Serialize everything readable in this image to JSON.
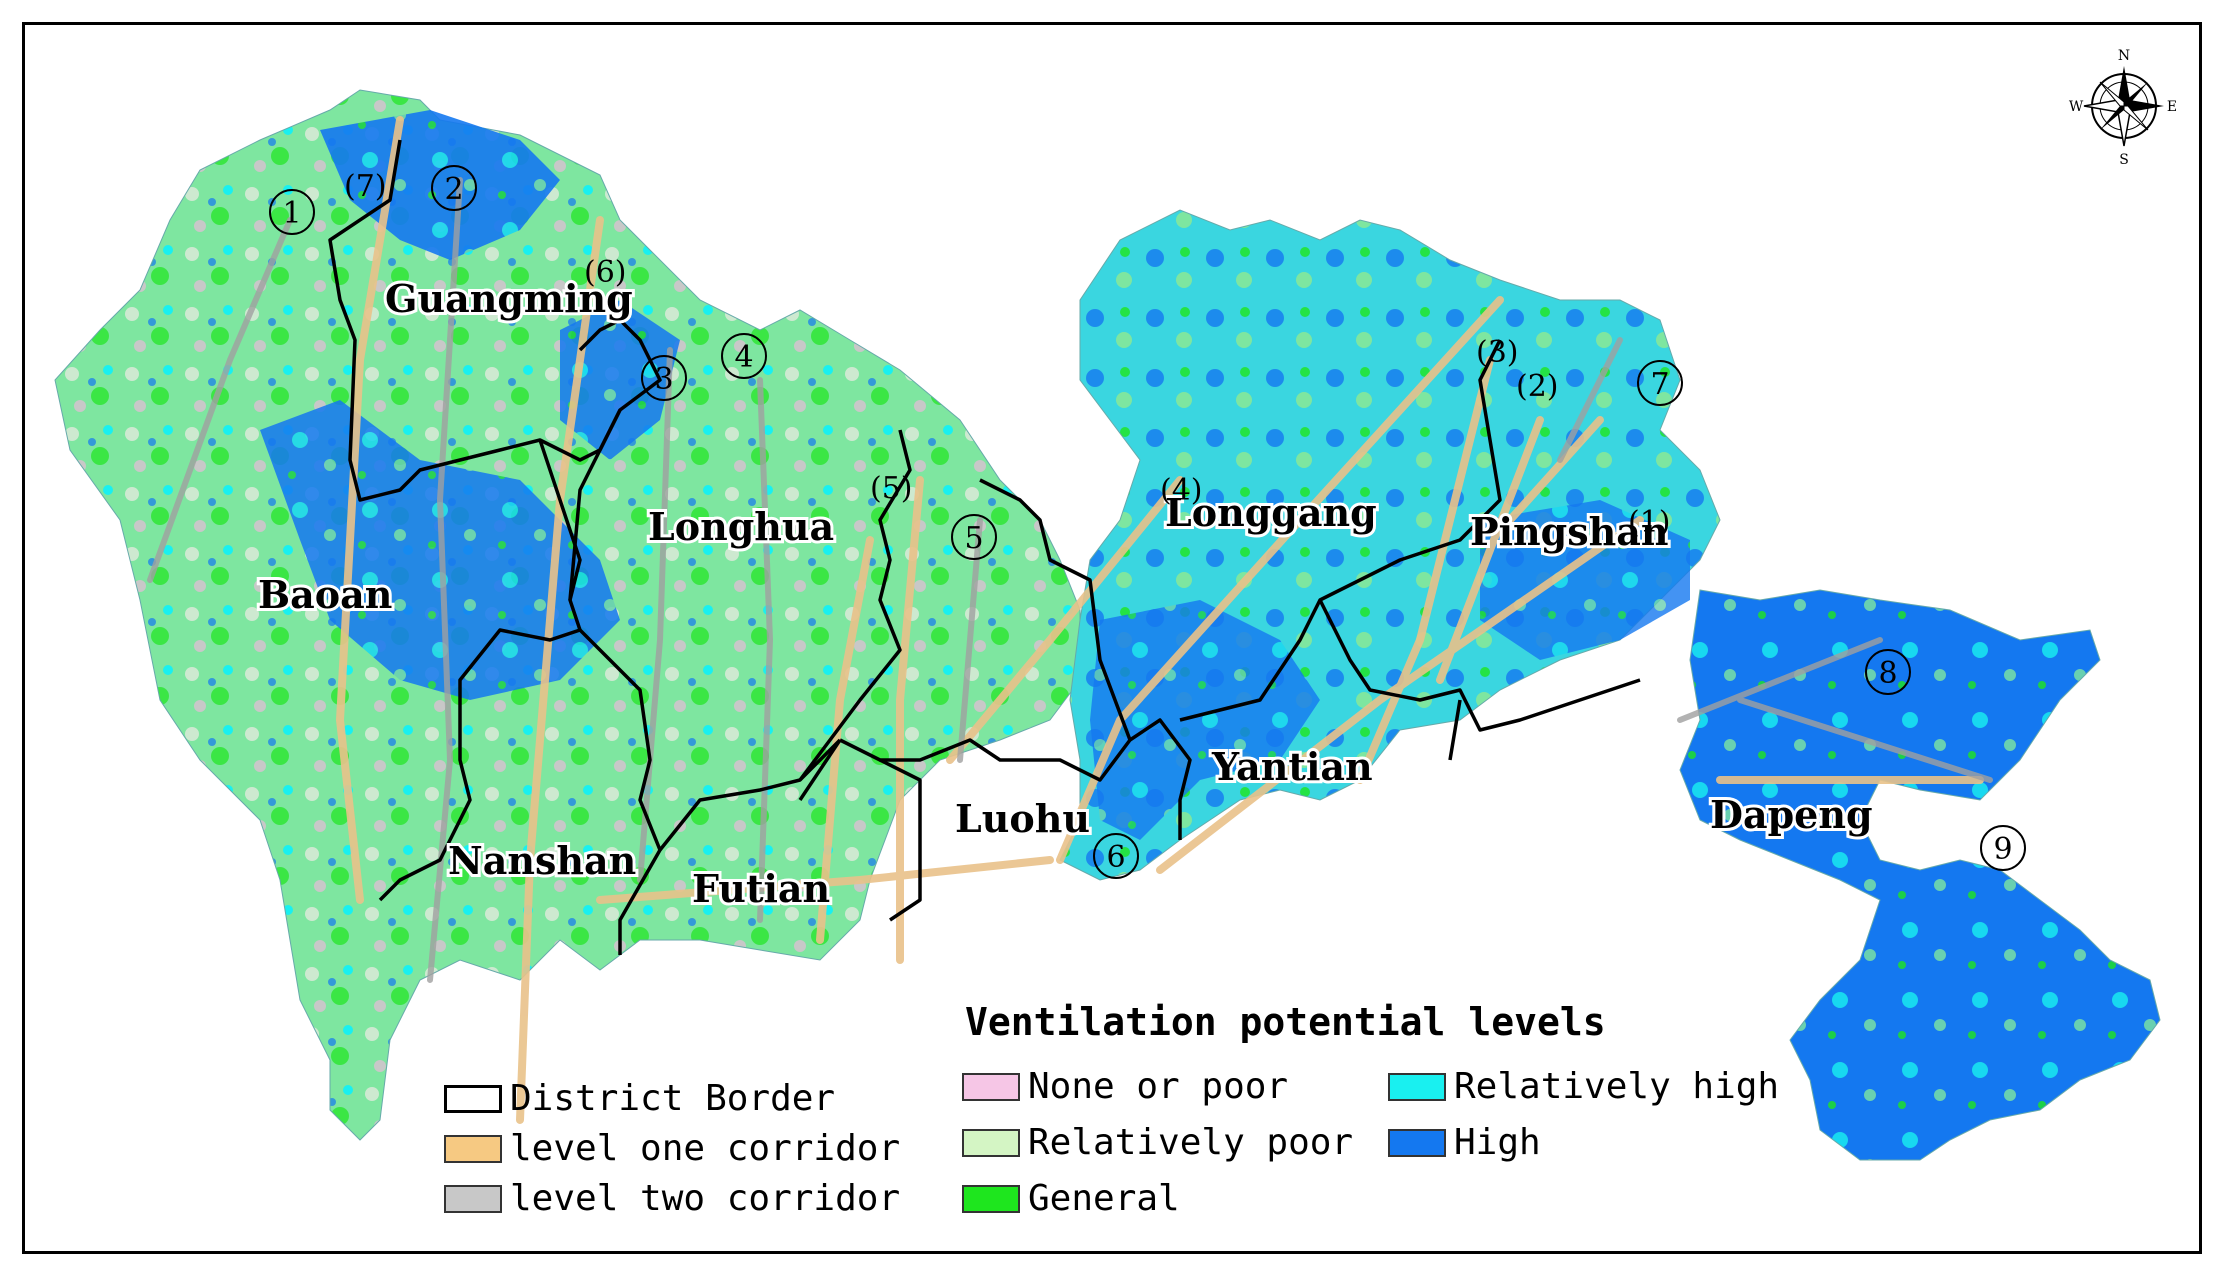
{
  "map": {
    "districts": [
      {
        "id": "guangming",
        "label": "Guangming"
      },
      {
        "id": "baoan",
        "label": "Baoan"
      },
      {
        "id": "longhua",
        "label": "Longhua"
      },
      {
        "id": "longgang",
        "label": "Longgang"
      },
      {
        "id": "pingshan",
        "label": "Pingshan"
      },
      {
        "id": "nanshan",
        "label": "Nanshan"
      },
      {
        "id": "futian",
        "label": "Futian"
      },
      {
        "id": "luohu",
        "label": "Luohu"
      },
      {
        "id": "yantian",
        "label": "Yantian"
      },
      {
        "id": "dapeng",
        "label": "Dapeng"
      }
    ],
    "level_one_corridor_markers": [
      "1",
      "2",
      "3",
      "4",
      "5",
      "6",
      "7",
      "8",
      "9"
    ],
    "level_two_corridor_markers": [
      "(1)",
      "(2)",
      "(3)",
      "(4)",
      "(5)",
      "(6)",
      "(7)"
    ],
    "compass": {
      "n": "N",
      "s": "S",
      "e": "E",
      "w": "W"
    }
  },
  "legend": {
    "title": "Ventilation potential levels",
    "border_items": [
      {
        "label": "District Border",
        "color": "#ffffff"
      },
      {
        "label": "level one corridor",
        "color": "#f6c982"
      },
      {
        "label": "level two corridor",
        "color": "#c8c8c8"
      }
    ],
    "levels": [
      {
        "label": "None or poor",
        "color": "#f6c6e6"
      },
      {
        "label": "Relatively poor",
        "color": "#d4f5c4"
      },
      {
        "label": "General",
        "color": "#1ee61e"
      },
      {
        "label": "Relatively high",
        "color": "#19f0f0"
      },
      {
        "label": "High",
        "color": "#1478f0"
      }
    ]
  }
}
